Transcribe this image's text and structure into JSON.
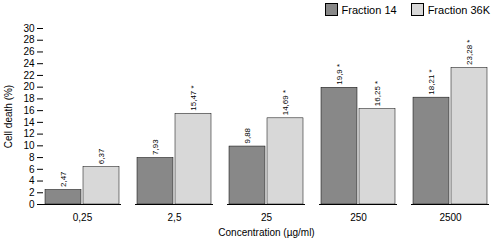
{
  "chart_data": {
    "type": "bar",
    "categories": [
      "0,25",
      "2,5",
      "25",
      "250",
      "2500"
    ],
    "xlabel": "Concentration (µg/ml)",
    "ylabel": "Cell death (%)",
    "series": [
      {
        "name": "Fraction 14",
        "color": "#888888",
        "values": [
          2.47,
          7.93,
          9.88,
          19.9,
          18.21
        ],
        "value_labels": [
          "2,47",
          "7,93",
          "9,88",
          "19,9 *",
          "18,21 *"
        ]
      },
      {
        "name": "Fraction 36K",
        "color": "#d8d8d8",
        "values": [
          6.37,
          15.47,
          14.69,
          16.25,
          23.28
        ],
        "value_labels": [
          "6,37",
          "15,47 *",
          "14,69 *",
          "16,25 *",
          "23,28 *"
        ]
      }
    ],
    "ylim": [
      0,
      30
    ],
    "yticks": [
      0,
      2,
      4,
      6,
      8,
      10,
      12,
      14,
      16,
      18,
      20,
      22,
      24,
      26,
      28,
      30
    ],
    "grid": false,
    "legend": "upper right",
    "data_labels": true
  }
}
